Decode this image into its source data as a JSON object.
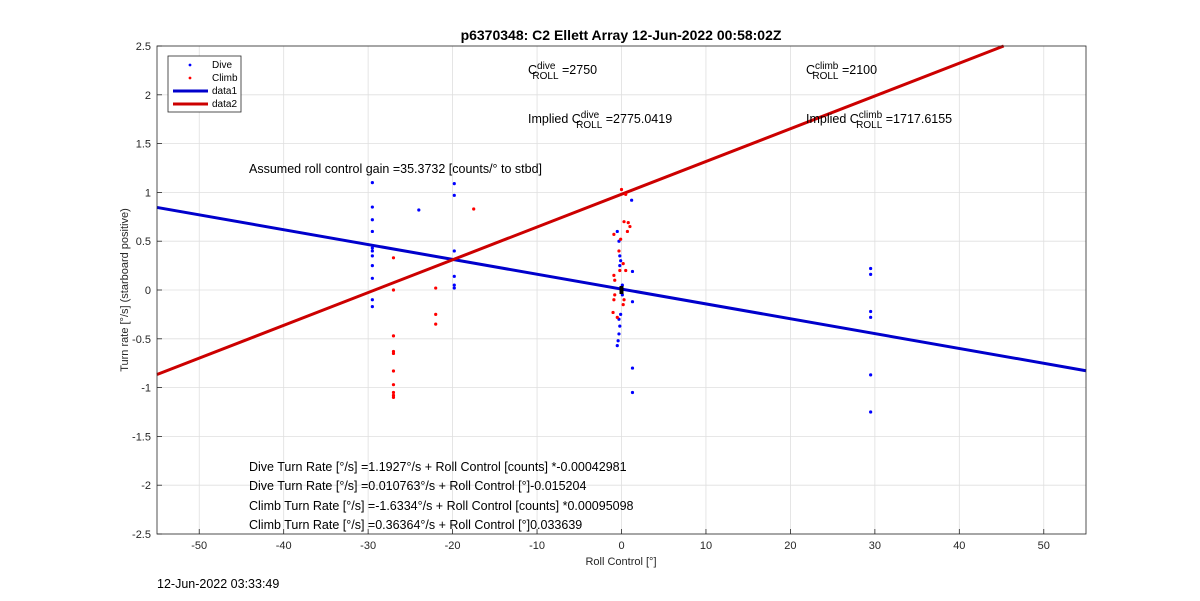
{
  "chart_data": {
    "type": "scatter",
    "title": "p6370348: C2 Ellett Array 12-Jun-2022 00:58:02Z",
    "xlabel": "Roll Control [°]",
    "ylabel": "Turn rate [°/s] (starboard positive)",
    "xlim": [
      -55,
      55
    ],
    "ylim": [
      -2.5,
      2.5
    ],
    "xticks": [
      -50,
      -40,
      -30,
      -20,
      -10,
      0,
      10,
      20,
      30,
      40,
      50
    ],
    "yticks": [
      -2.5,
      -2,
      -1.5,
      -1,
      -0.5,
      0,
      0.5,
      1,
      1.5,
      2,
      2.5
    ],
    "grid": true,
    "legend_position": "top-left",
    "colors": {
      "dive": "#0000ff",
      "climb": "#ff0000",
      "data1": "#0000cc",
      "data2": "#cc0000"
    },
    "series": [
      {
        "name": "Dive",
        "mode": "markers",
        "points": [
          [
            -29.5,
            1.1
          ],
          [
            -29.5,
            0.85
          ],
          [
            -29.5,
            0.72
          ],
          [
            -29.5,
            0.6
          ],
          [
            -29.5,
            0.43
          ],
          [
            -29.5,
            0.4
          ],
          [
            -29.5,
            0.35
          ],
          [
            -29.5,
            0.25
          ],
          [
            -29.5,
            0.12
          ],
          [
            -29.5,
            -0.1
          ],
          [
            -29.5,
            -0.17
          ],
          [
            -24,
            0.82
          ],
          [
            -19.8,
            1.09
          ],
          [
            -19.8,
            0.97
          ],
          [
            -19.8,
            0.4
          ],
          [
            -19.8,
            0.14
          ],
          [
            -19.8,
            0.05
          ],
          [
            -19.8,
            0.02
          ],
          [
            -0.5,
            0.6
          ],
          [
            -0.3,
            0.5
          ],
          [
            -0.2,
            0.35
          ],
          [
            -0.1,
            0.3
          ],
          [
            -0.2,
            0.25
          ],
          [
            0.1,
            0.05
          ],
          [
            0.0,
            -0.02
          ],
          [
            0.1,
            -0.05
          ],
          [
            -0.1,
            -0.25
          ],
          [
            -0.3,
            -0.3
          ],
          [
            -0.2,
            -0.37
          ],
          [
            -0.3,
            -0.45
          ],
          [
            -0.4,
            -0.52
          ],
          [
            -0.5,
            -0.57
          ],
          [
            1.2,
            0.92
          ],
          [
            1.3,
            0.19
          ],
          [
            1.3,
            -0.12
          ],
          [
            1.3,
            -0.8
          ],
          [
            1.3,
            -1.05
          ],
          [
            29.5,
            0.22
          ],
          [
            29.5,
            0.16
          ],
          [
            29.5,
            -0.22
          ],
          [
            29.5,
            -0.28
          ],
          [
            29.5,
            -0.87
          ],
          [
            29.5,
            -1.25
          ]
        ]
      },
      {
        "name": "Climb",
        "mode": "markers",
        "points": [
          [
            -27,
            0.33
          ],
          [
            -27,
            0.0
          ],
          [
            -27,
            -0.47
          ],
          [
            -27,
            -0.63
          ],
          [
            -27,
            -0.65
          ],
          [
            -27,
            -0.83
          ],
          [
            -27,
            -0.97
          ],
          [
            -27,
            -1.05
          ],
          [
            -27,
            -1.08
          ],
          [
            -27,
            -1.1
          ],
          [
            -22,
            0.02
          ],
          [
            -22,
            -0.25
          ],
          [
            -22,
            -0.35
          ],
          [
            -17.5,
            0.83
          ],
          [
            0.0,
            1.03
          ],
          [
            0.5,
            0.98
          ],
          [
            0.3,
            0.7
          ],
          [
            0.8,
            0.69
          ],
          [
            1.0,
            0.65
          ],
          [
            0.7,
            0.6
          ],
          [
            -0.9,
            0.57
          ],
          [
            -0.1,
            0.52
          ],
          [
            -0.3,
            0.4
          ],
          [
            0.2,
            0.27
          ],
          [
            -0.2,
            0.2
          ],
          [
            0.5,
            0.2
          ],
          [
            -0.9,
            0.15
          ],
          [
            -0.8,
            0.1
          ],
          [
            -0.8,
            -0.05
          ],
          [
            -0.9,
            -0.1
          ],
          [
            0.3,
            -0.1
          ],
          [
            -1.0,
            -0.23
          ],
          [
            -0.5,
            -0.28
          ],
          [
            0.2,
            -0.15
          ]
        ]
      },
      {
        "name": "data1",
        "mode": "line",
        "points": [
          [
            -55,
            0.8459
          ],
          [
            55,
            -0.827
          ]
        ]
      },
      {
        "name": "data2",
        "mode": "line",
        "points": [
          [
            -55,
            -0.8656
          ],
          [
            45.25,
            2.5
          ]
        ]
      }
    ],
    "annotations": {
      "c_dive": {
        "pre": "C",
        "sup": "dive",
        "sub": "ROLL",
        "post": " =2750"
      },
      "c_climb": {
        "pre": "C",
        "sup": "climb",
        "sub": "ROLL",
        "post": " =2100"
      },
      "implied_dive": {
        "pre": "Implied C",
        "sup": "dive",
        "sub": "ROLL",
        "post": " =2775.0419"
      },
      "implied_climb": {
        "pre": "Implied C",
        "sup": "climb",
        "sub": "ROLL",
        "post": " =1717.6155"
      },
      "gain": "Assumed roll control gain =35.3732 [counts/° to stbd]",
      "eq1": "Dive Turn Rate [°/s] =1.1927°/s + Roll Control [counts] *-0.00042981",
      "eq2": "Dive Turn Rate [°/s] =0.010763°/s + Roll Control [°]-0.015204",
      "eq3": "Climb Turn Rate [°/s] =-1.6334°/s + Roll Control [counts] *0.00095098",
      "eq4": "Climb Turn Rate [°/s] =0.36364°/s + Roll Control [°]0.033639"
    }
  },
  "timestamp": "12-Jun-2022 03:33:49"
}
